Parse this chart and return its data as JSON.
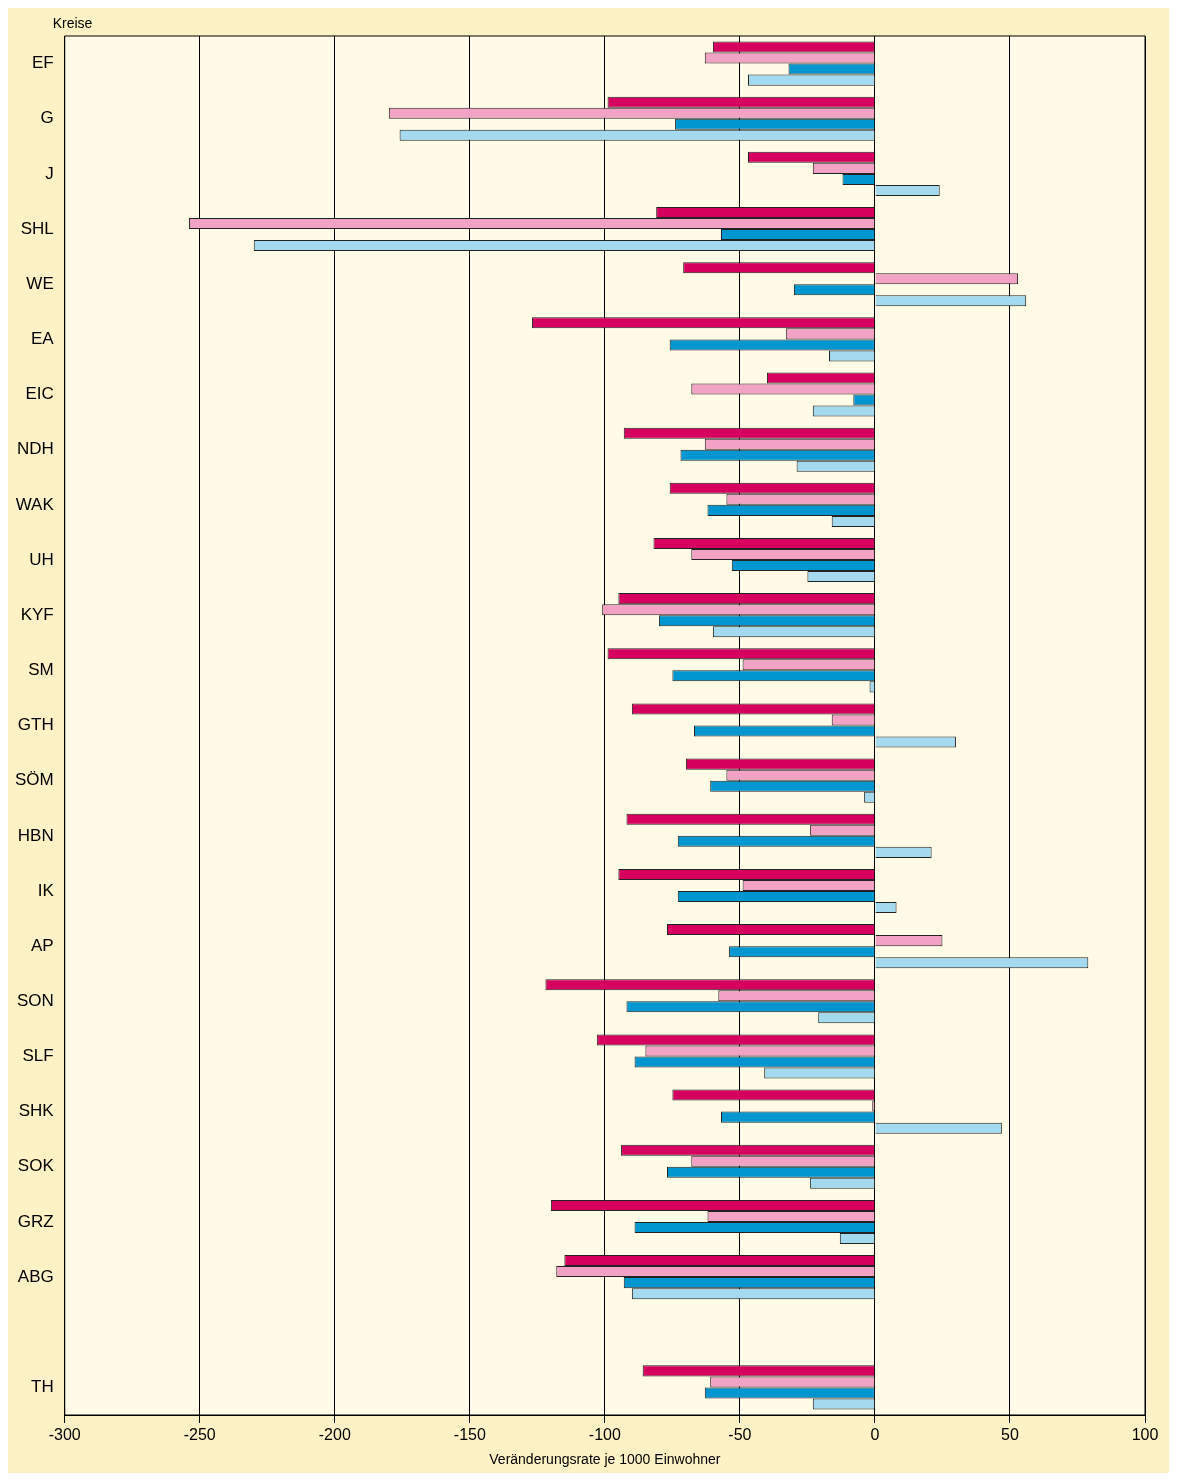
{
  "chart_data": {
    "type": "bar",
    "orientation": "horizontal",
    "ylabel": "Kreise",
    "xlabel": "Veränderungsrate je 1000 Einwohner",
    "categories": [
      "EF",
      "G",
      "J",
      "SHL",
      "WE",
      "EA",
      "EIC",
      "NDH",
      "WAK",
      "UH",
      "KYF",
      "SM",
      "GTH",
      "SÖM",
      "HBN",
      "IK",
      "AP",
      "SON",
      "SLF",
      "SHK",
      "SOK",
      "GRZ",
      "ABG",
      null,
      "TH"
    ],
    "series": [
      {
        "color": "#d6005f",
        "values": [
          -60,
          -99,
          -47,
          -81,
          -71,
          -127,
          -40,
          -93,
          -76,
          -82,
          -95,
          -99,
          -90,
          -70,
          -92,
          -95,
          -77,
          -122,
          -103,
          -75,
          -94,
          -120,
          -115,
          null,
          -86
        ]
      },
      {
        "color": "#f2a3c5",
        "values": [
          -63,
          -180,
          -23,
          -254,
          53,
          -33,
          -68,
          -63,
          -55,
          -68,
          -101,
          -49,
          -16,
          -55,
          -24,
          -49,
          25,
          -58,
          -85,
          -1,
          -68,
          -62,
          -118,
          null,
          -61
        ]
      },
      {
        "color": "#0096d0",
        "values": [
          -32,
          -74,
          -12,
          -57,
          -30,
          -76,
          -8,
          -72,
          -62,
          -53,
          -80,
          -75,
          -67,
          -61,
          -73,
          -73,
          -54,
          -92,
          -89,
          -57,
          -77,
          -89,
          -93,
          null,
          -63
        ]
      },
      {
        "color": "#a3daf0",
        "values": [
          -47,
          -176,
          24,
          -230,
          56,
          -17,
          -23,
          -29,
          -16,
          -25,
          -60,
          -2,
          30,
          -4,
          21,
          8,
          79,
          -21,
          -41,
          47,
          -24,
          -13,
          -90,
          null,
          -23
        ]
      }
    ],
    "xlim": [
      -300,
      100
    ],
    "xticks": [
      -300,
      -250,
      -200,
      -150,
      -100,
      -50,
      0,
      50,
      100
    ],
    "grid": "x",
    "legend": false
  }
}
